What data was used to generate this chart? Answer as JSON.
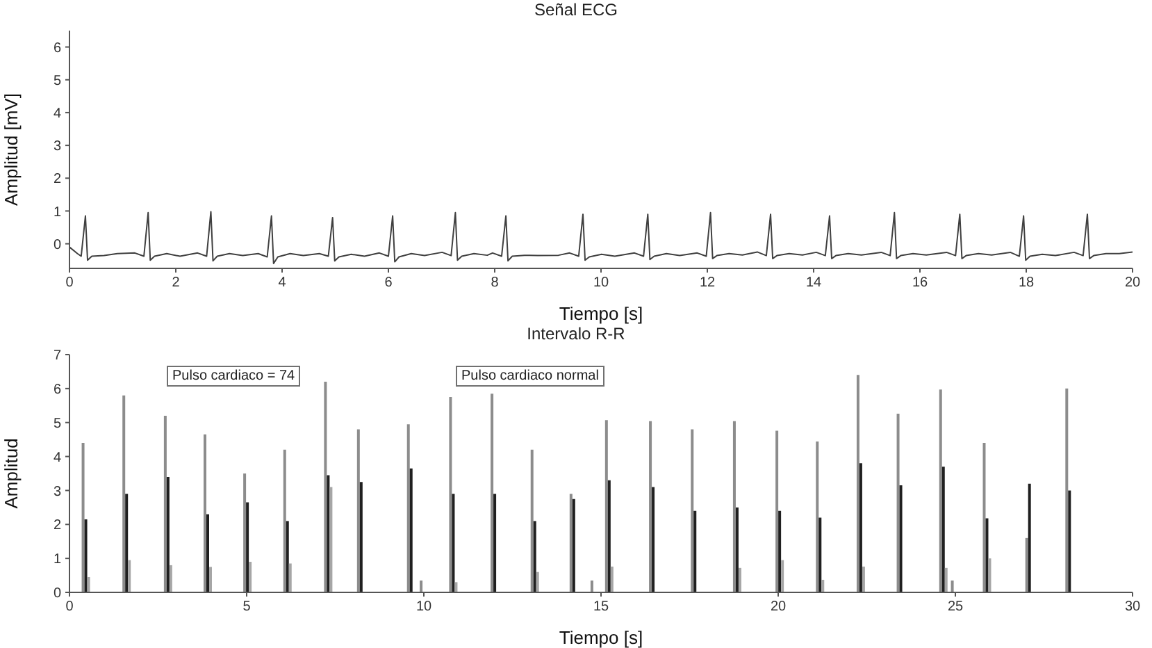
{
  "chart_data": [
    {
      "type": "line",
      "title": "Señal ECG",
      "xlabel": "Tiempo [s]",
      "ylabel": "Amplitud [mV]",
      "xlim": [
        0,
        20
      ],
      "xticks": [
        0,
        2,
        4,
        6,
        8,
        10,
        12,
        14,
        16,
        18,
        20
      ],
      "ylim": [
        -0.75,
        6.5
      ],
      "yticks": [
        0,
        1,
        2,
        3,
        4,
        5,
        6
      ],
      "grid": false,
      "marker": "none",
      "line_style": "solid",
      "x": [
        0,
        0.15,
        0.22,
        0.3,
        0.34,
        0.42,
        0.65,
        0.9,
        1.23,
        1.4,
        1.48,
        1.52,
        1.6,
        1.83,
        2.08,
        2.41,
        2.58,
        2.66,
        2.7,
        2.78,
        3.01,
        3.26,
        3.55,
        3.72,
        3.8,
        3.84,
        3.92,
        4.15,
        4.4,
        4.7,
        4.87,
        4.95,
        4.99,
        5.07,
        5.3,
        5.55,
        5.83,
        6,
        6.08,
        6.12,
        6.2,
        6.43,
        6.68,
        7.01,
        7.18,
        7.26,
        7.3,
        7.38,
        7.61,
        7.86,
        7.96,
        8.13,
        8.21,
        8.25,
        8.33,
        8.56,
        8.81,
        9.2,
        9.41,
        9.58,
        9.66,
        9.7,
        9.78,
        10.01,
        10.26,
        10.63,
        10.8,
        10.88,
        10.92,
        11,
        11.23,
        11.48,
        11.81,
        11.98,
        12.06,
        12.1,
        12.18,
        12.41,
        12.66,
        12.94,
        13.11,
        13.19,
        13.23,
        13.31,
        13.54,
        13.79,
        14.05,
        14.22,
        14.3,
        14.34,
        14.42,
        14.65,
        14.9,
        15.27,
        15.44,
        15.52,
        15.56,
        15.64,
        15.87,
        16.12,
        16.5,
        16.67,
        16.75,
        16.79,
        16.87,
        17.1,
        17.35,
        17.7,
        17.87,
        17.95,
        17.99,
        18.07,
        18.3,
        18.55,
        18.9,
        19.07,
        19.15,
        19.19,
        19.27,
        19.5,
        19.75,
        20
      ],
      "series": [
        {
          "color": "#404040",
          "values": [
            -0.1,
            -0.3,
            -0.38,
            0.85,
            -0.5,
            -0.38,
            -0.36,
            -0.3,
            -0.28,
            -0.38,
            0.95,
            -0.5,
            -0.38,
            -0.3,
            -0.38,
            -0.28,
            -0.38,
            0.98,
            -0.52,
            -0.38,
            -0.3,
            -0.36,
            -0.3,
            -0.4,
            0.85,
            -0.6,
            -0.4,
            -0.3,
            -0.36,
            -0.3,
            -0.38,
            0.8,
            -0.52,
            -0.4,
            -0.32,
            -0.38,
            -0.28,
            -0.38,
            0.85,
            -0.55,
            -0.4,
            -0.3,
            -0.36,
            -0.26,
            -0.36,
            0.95,
            -0.5,
            -0.38,
            -0.3,
            -0.35,
            -0.28,
            -0.38,
            0.85,
            -0.52,
            -0.38,
            -0.35,
            -0.36,
            -0.35,
            -0.28,
            -0.38,
            0.9,
            -0.5,
            -0.4,
            -0.32,
            -0.38,
            -0.28,
            -0.38,
            0.9,
            -0.48,
            -0.38,
            -0.3,
            -0.36,
            -0.28,
            -0.38,
            0.95,
            -0.45,
            -0.36,
            -0.3,
            -0.34,
            -0.25,
            -0.36,
            0.9,
            -0.45,
            -0.36,
            -0.3,
            -0.34,
            -0.26,
            -0.36,
            0.85,
            -0.45,
            -0.36,
            -0.3,
            -0.34,
            -0.26,
            -0.36,
            0.95,
            -0.45,
            -0.36,
            -0.3,
            -0.34,
            -0.26,
            -0.36,
            0.9,
            -0.45,
            -0.36,
            -0.3,
            -0.34,
            -0.26,
            -0.38,
            0.85,
            -0.5,
            -0.38,
            -0.32,
            -0.36,
            -0.26,
            -0.36,
            0.9,
            -0.45,
            -0.36,
            -0.3,
            -0.3,
            -0.25
          ]
        }
      ]
    },
    {
      "type": "bar",
      "title": "Intervalo R-R",
      "xlabel": "Tiempo [s]",
      "ylabel": "Amplitud",
      "xlim": [
        0,
        30
      ],
      "xticks": [
        0,
        5,
        10,
        15,
        20,
        25,
        30
      ],
      "ylim": [
        0,
        7
      ],
      "yticks": [
        0,
        1,
        2,
        3,
        4,
        5,
        6,
        7
      ],
      "grid": false,
      "x": [
        0.47,
        1.62,
        2.79,
        3.91,
        5.03,
        6.16,
        7.31,
        8.24,
        9.65,
        10.01,
        10.84,
        12.01,
        13.14,
        14.24,
        14.83,
        15.24,
        16.48,
        17.66,
        18.85,
        20.05,
        21.19,
        22.34,
        23.47,
        24.67,
        25.0,
        25.9,
        27.1,
        28.23
      ],
      "series": [
        {
          "color": "#8c8c8c",
          "values": [
            4.4,
            5.8,
            5.2,
            4.65,
            3.5,
            4.2,
            6.2,
            4.8,
            4.95,
            0.35,
            5.75,
            5.85,
            4.2,
            2.9,
            0.35,
            5.07,
            5.04,
            4.8,
            5.04,
            4.76,
            4.44,
            6.4,
            5.26,
            5.97,
            0.35,
            4.4,
            1.6,
            6.0
          ]
        },
        {
          "color": "#202020",
          "values": [
            2.15,
            2.9,
            3.4,
            2.3,
            2.65,
            2.1,
            3.45,
            3.25,
            3.65,
            null,
            2.9,
            2.9,
            2.1,
            2.75,
            null,
            3.3,
            3.1,
            2.4,
            2.5,
            2.4,
            2.2,
            3.8,
            3.15,
            3.7,
            null,
            2.18,
            3.2,
            3.0
          ]
        },
        {
          "color": "#a6a6a6",
          "values": [
            0.45,
            0.95,
            0.8,
            0.75,
            0.9,
            0.85,
            3.1,
            null,
            null,
            null,
            0.3,
            null,
            0.6,
            null,
            null,
            0.76,
            null,
            null,
            0.72,
            0.95,
            0.37,
            0.76,
            null,
            0.72,
            null,
            1.0,
            null,
            null
          ]
        }
      ],
      "annotations": [
        "Pulso cardiaco = 74",
        "Pulso cardiaco normal"
      ]
    }
  ]
}
